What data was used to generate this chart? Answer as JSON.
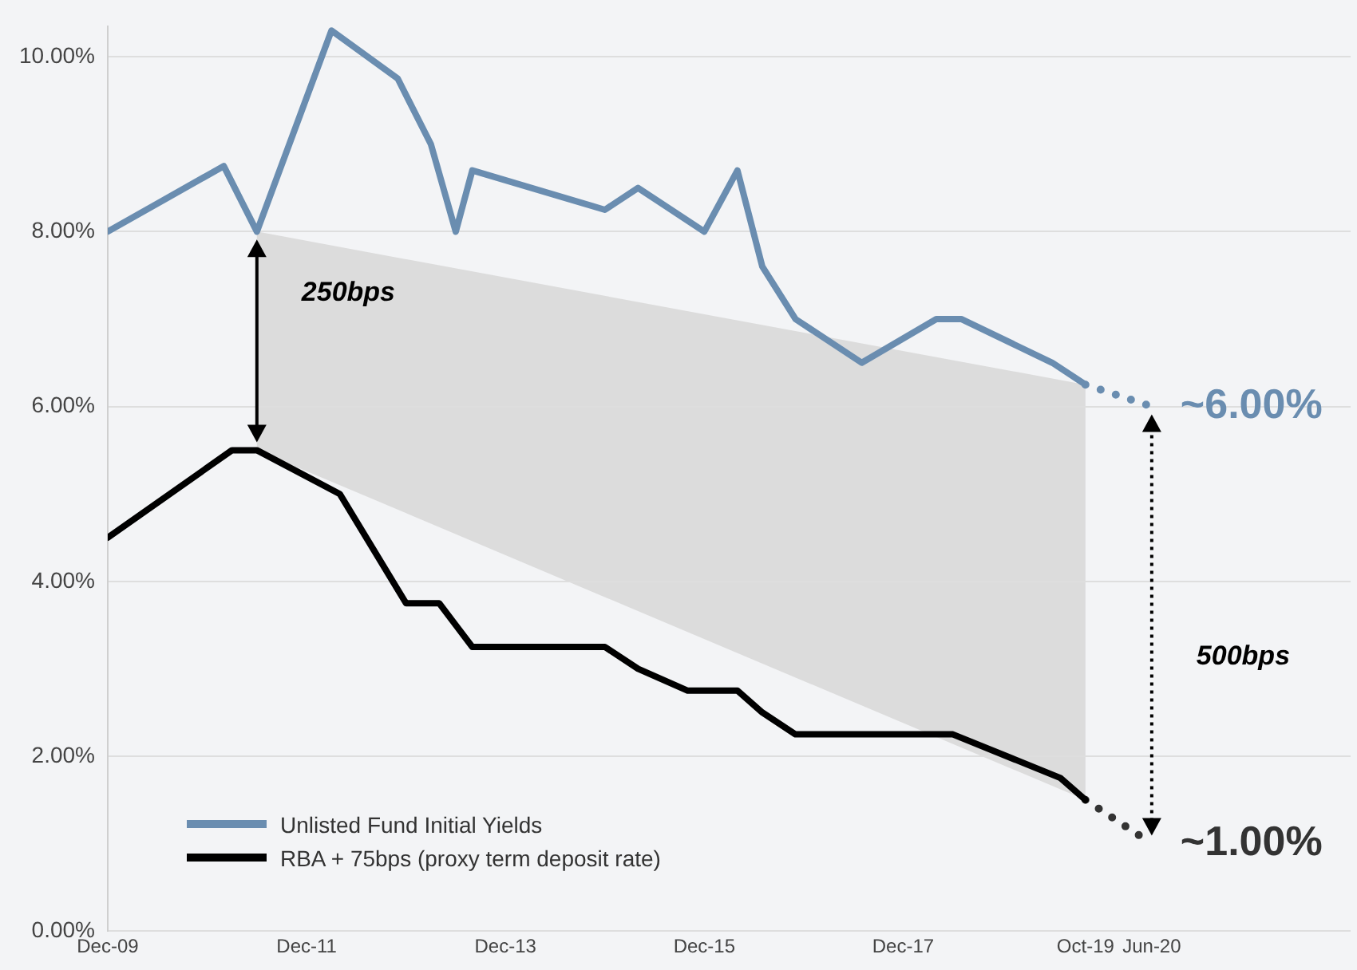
{
  "chart_data": {
    "type": "line",
    "xlim": [
      "2009-12",
      "2022-06"
    ],
    "ylim": [
      0,
      10.35
    ],
    "xticks": [
      {
        "value": "2009-12",
        "label": "Dec-09"
      },
      {
        "value": "2011-12",
        "label": "Dec-11"
      },
      {
        "value": "2013-12",
        "label": "Dec-13"
      },
      {
        "value": "2015-12",
        "label": "Dec-15"
      },
      {
        "value": "2017-12",
        "label": "Dec-17"
      },
      {
        "value": "2019-10",
        "label": "Oct-19"
      },
      {
        "value": "2020-06",
        "label": "Jun-20"
      }
    ],
    "yticks": [
      {
        "value": 0,
        "label": "0.00%"
      },
      {
        "value": 2,
        "label": "2.00%"
      },
      {
        "value": 4,
        "label": "4.00%"
      },
      {
        "value": 6,
        "label": "6.00%"
      },
      {
        "value": 8,
        "label": "8.00%"
      },
      {
        "value": 10,
        "label": "10.00%"
      }
    ],
    "grid": "y",
    "legend": "bottom left",
    "marker": "none",
    "annotations": [
      "250bps",
      "500bps"
    ],
    "series": [
      {
        "name": "Unlisted Fund Initial Yields",
        "color": "#6a8db0",
        "line_style": "solid",
        "x": [
          "2009-12",
          "2011-02",
          "2011-06",
          "2012-03",
          "2012-11",
          "2013-03",
          "2013-06",
          "2013-08",
          "2014-12",
          "2015-04",
          "2015-12",
          "2016-04",
          "2016-07",
          "2016-11",
          "2017-07",
          "2018-04",
          "2018-07",
          "2019-06",
          "2019-10"
        ],
        "values": [
          8.0,
          8.75,
          8.0,
          10.3,
          9.75,
          9.0,
          8.0,
          8.7,
          8.25,
          8.5,
          8.0,
          8.7,
          7.6,
          7.0,
          6.5,
          7.0,
          7.0,
          6.5,
          6.25
        ]
      },
      {
        "name": "RBA + 75bps (proxy term deposit rate)",
        "color": "#000000",
        "line_style": "solid",
        "x": [
          "2009-12",
          "2011-03",
          "2011-06",
          "2012-04",
          "2012-12",
          "2013-04",
          "2013-06",
          "2013-08",
          "2014-12",
          "2015-04",
          "2015-10",
          "2016-04",
          "2016-07",
          "2016-11",
          "2018-06",
          "2019-07",
          "2019-10"
        ],
        "values": [
          4.5,
          5.5,
          5.5,
          5.0,
          3.75,
          3.75,
          3.5,
          3.25,
          3.25,
          3.0,
          2.75,
          2.75,
          2.5,
          2.25,
          2.25,
          1.75,
          1.5
        ]
      },
      {
        "color": "#6a8db0",
        "line_style": "dotted",
        "x": [
          "2019-10",
          "2020-06"
        ],
        "values": [
          6.25,
          6.0
        ],
        "value_labels": [
          null,
          "~6.00%"
        ]
      },
      {
        "color": "#333333",
        "line_style": "dotted",
        "x": [
          "2019-10",
          "2020-06"
        ],
        "values": [
          1.5,
          1.0
        ],
        "value_labels": [
          null,
          "~1.00%"
        ]
      }
    ]
  }
}
